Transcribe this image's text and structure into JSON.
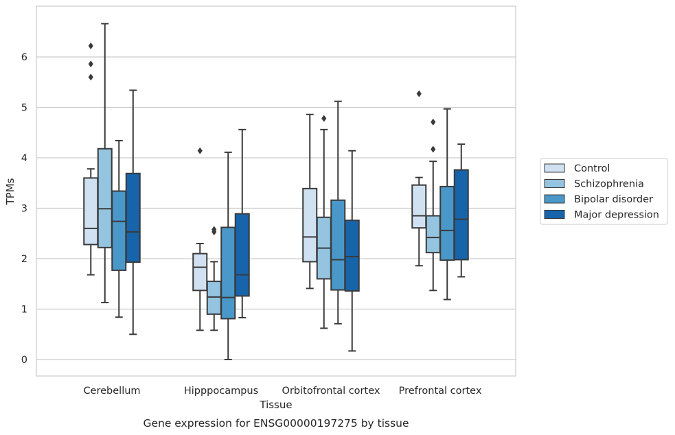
{
  "caption": "Gene expression for ENSG00000197275 by tissue",
  "chart_data": {
    "type": "box",
    "title": "",
    "xlabel": "Tissue",
    "ylabel": "TPMs",
    "ylim": [
      -0.32,
      7.3
    ],
    "yticks": [
      0,
      1,
      2,
      3,
      4,
      5,
      6
    ],
    "grid": "horizontal",
    "legend_position": "right",
    "categories": [
      "Cerebellum",
      "Hipppocampus",
      "Orbitofrontal cortex",
      "Prefrontal cortex"
    ],
    "series": [
      {
        "name": "Control",
        "color": "#d0e1f2",
        "boxes": [
          {
            "whisker_low": 1.68,
            "q1": 2.28,
            "median": 2.6,
            "q3": 3.6,
            "whisker_high": 3.78,
            "outliers": [
              5.6,
              5.86,
              6.22
            ]
          },
          {
            "whisker_low": 0.58,
            "q1": 1.37,
            "median": 1.83,
            "q3": 2.1,
            "whisker_high": 2.3,
            "outliers": [
              4.14
            ]
          },
          {
            "whisker_low": 1.41,
            "q1": 1.94,
            "median": 2.43,
            "q3": 3.39,
            "whisker_high": 4.86,
            "outliers": []
          },
          {
            "whisker_low": 1.86,
            "q1": 2.61,
            "median": 2.85,
            "q3": 3.46,
            "whisker_high": 3.61,
            "outliers": [
              5.27
            ]
          }
        ]
      },
      {
        "name": "Schizophrenia",
        "color": "#94c4df",
        "boxes": [
          {
            "whisker_low": 1.13,
            "q1": 2.22,
            "median": 2.99,
            "q3": 4.18,
            "whisker_high": 6.66,
            "outliers": []
          },
          {
            "whisker_low": 0.58,
            "q1": 0.9,
            "median": 1.24,
            "q3": 1.55,
            "whisker_high": 1.94,
            "outliers": [
              2.53,
              2.58
            ]
          },
          {
            "whisker_low": 0.62,
            "q1": 1.6,
            "median": 2.21,
            "q3": 2.82,
            "whisker_high": 4.56,
            "outliers": [
              4.78
            ]
          },
          {
            "whisker_low": 1.37,
            "q1": 2.12,
            "median": 2.42,
            "q3": 2.85,
            "whisker_high": 3.93,
            "outliers": [
              4.17,
              4.71
            ]
          }
        ]
      },
      {
        "name": "Bipolar disorder",
        "color": "#4a98c9",
        "boxes": [
          {
            "whisker_low": 0.84,
            "q1": 1.77,
            "median": 2.74,
            "q3": 3.34,
            "whisker_high": 4.34,
            "outliers": []
          },
          {
            "whisker_low": 0.0,
            "q1": 0.81,
            "median": 1.23,
            "q3": 2.62,
            "whisker_high": 4.11,
            "outliers": []
          },
          {
            "whisker_low": 0.71,
            "q1": 1.38,
            "median": 1.98,
            "q3": 3.16,
            "whisker_high": 5.12,
            "outliers": []
          },
          {
            "whisker_low": 1.19,
            "q1": 1.97,
            "median": 2.56,
            "q3": 3.43,
            "whisker_high": 4.97,
            "outliers": []
          }
        ]
      },
      {
        "name": "Major depression",
        "color": "#1764ab",
        "boxes": [
          {
            "whisker_low": 0.5,
            "q1": 1.93,
            "median": 2.53,
            "q3": 3.69,
            "whisker_high": 5.34,
            "outliers": []
          },
          {
            "whisker_low": 0.83,
            "q1": 1.26,
            "median": 1.68,
            "q3": 2.89,
            "whisker_high": 4.56,
            "outliers": []
          },
          {
            "whisker_low": 0.17,
            "q1": 1.36,
            "median": 2.04,
            "q3": 2.76,
            "whisker_high": 4.14,
            "outliers": []
          },
          {
            "whisker_low": 1.64,
            "q1": 1.98,
            "median": 2.78,
            "q3": 3.76,
            "whisker_high": 4.27,
            "outliers": []
          }
        ]
      }
    ]
  }
}
